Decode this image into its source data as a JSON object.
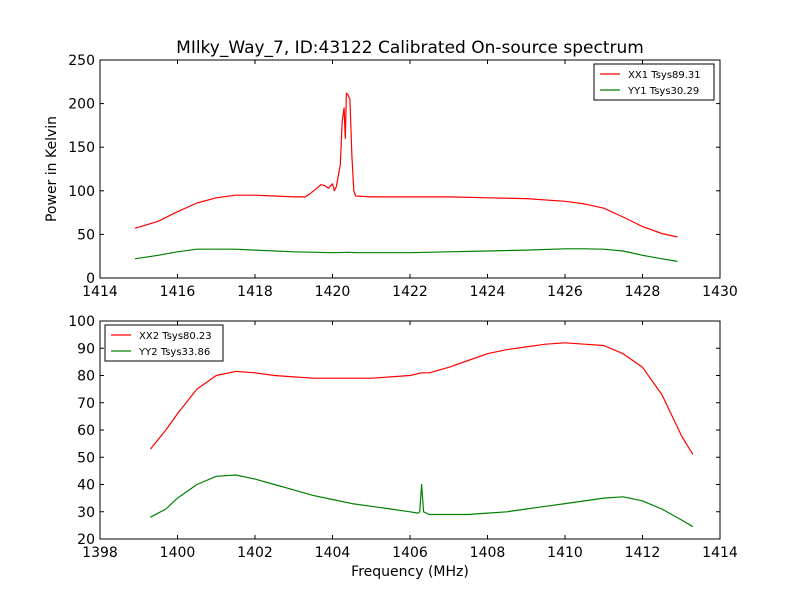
{
  "chart_data": [
    {
      "type": "line",
      "title": "MIlky_Way_7, ID:43122 Calibrated On-source spectrum",
      "xlabel": "",
      "ylabel": "Power in Kelvin",
      "xlim": [
        1414,
        1430
      ],
      "ylim": [
        0,
        250
      ],
      "xticks": [
        1414,
        1416,
        1418,
        1420,
        1422,
        1424,
        1426,
        1428,
        1430
      ],
      "yticks": [
        0,
        50,
        100,
        150,
        200,
        250
      ],
      "legend": "top-right",
      "series": [
        {
          "name": "XX1 Tsys89.31",
          "color": "#ff0000",
          "points": [
            [
              1414.9,
              57
            ],
            [
              1415.5,
              65
            ],
            [
              1416.0,
              76
            ],
            [
              1416.5,
              86
            ],
            [
              1417.0,
              92
            ],
            [
              1417.5,
              95
            ],
            [
              1418.0,
              95
            ],
            [
              1418.5,
              94
            ],
            [
              1419.0,
              93
            ],
            [
              1419.3,
              93
            ],
            [
              1419.4,
              96
            ],
            [
              1419.6,
              103
            ],
            [
              1419.7,
              107
            ],
            [
              1419.8,
              106
            ],
            [
              1419.9,
              103
            ],
            [
              1420.0,
              108
            ],
            [
              1420.05,
              100
            ],
            [
              1420.1,
              105
            ],
            [
              1420.2,
              130
            ],
            [
              1420.25,
              180
            ],
            [
              1420.3,
              195
            ],
            [
              1420.33,
              160
            ],
            [
              1420.36,
              212
            ],
            [
              1420.4,
              210
            ],
            [
              1420.45,
              205
            ],
            [
              1420.5,
              140
            ],
            [
              1420.55,
              100
            ],
            [
              1420.6,
              94
            ],
            [
              1421.0,
              93
            ],
            [
              1422.0,
              93
            ],
            [
              1423.0,
              93
            ],
            [
              1424.0,
              92
            ],
            [
              1425.0,
              91
            ],
            [
              1426.0,
              88
            ],
            [
              1426.5,
              85
            ],
            [
              1427.0,
              80
            ],
            [
              1427.5,
              70
            ],
            [
              1428.0,
              59
            ],
            [
              1428.5,
              51
            ],
            [
              1428.9,
              47
            ]
          ]
        },
        {
          "name": "YY1 Tsys30.29",
          "color": "#008000",
          "points": [
            [
              1414.9,
              22
            ],
            [
              1415.5,
              26
            ],
            [
              1416.0,
              30
            ],
            [
              1416.5,
              33
            ],
            [
              1417.0,
              33
            ],
            [
              1417.5,
              33
            ],
            [
              1418.0,
              32
            ],
            [
              1419.0,
              30
            ],
            [
              1420.0,
              29
            ],
            [
              1420.4,
              29.5
            ],
            [
              1420.6,
              29
            ],
            [
              1421.0,
              29
            ],
            [
              1422.0,
              29
            ],
            [
              1423.0,
              30
            ],
            [
              1424.0,
              31
            ],
            [
              1425.0,
              32
            ],
            [
              1426.0,
              33.5
            ],
            [
              1426.5,
              33.5
            ],
            [
              1427.0,
              33
            ],
            [
              1427.5,
              31
            ],
            [
              1428.0,
              26
            ],
            [
              1428.5,
              22
            ],
            [
              1428.9,
              19
            ]
          ]
        }
      ]
    },
    {
      "type": "line",
      "title": "",
      "xlabel": "Frequency (MHz)",
      "ylabel": "",
      "xlim": [
        1398,
        1414
      ],
      "ylim": [
        20,
        100
      ],
      "xticks": [
        1398,
        1400,
        1402,
        1404,
        1406,
        1408,
        1410,
        1412,
        1414
      ],
      "yticks": [
        20,
        30,
        40,
        50,
        60,
        70,
        80,
        90,
        100
      ],
      "legend": "top-left",
      "series": [
        {
          "name": "XX2 Tsys80.23",
          "color": "#ff0000",
          "points": [
            [
              1399.3,
              53
            ],
            [
              1399.7,
              60
            ],
            [
              1400.0,
              66
            ],
            [
              1400.5,
              75
            ],
            [
              1401.0,
              80
            ],
            [
              1401.5,
              81.5
            ],
            [
              1402.0,
              81
            ],
            [
              1402.5,
              80
            ],
            [
              1403.0,
              79.5
            ],
            [
              1403.5,
              79
            ],
            [
              1404.0,
              79
            ],
            [
              1404.5,
              79
            ],
            [
              1405.0,
              79
            ],
            [
              1405.5,
              79.5
            ],
            [
              1406.0,
              80
            ],
            [
              1406.3,
              81
            ],
            [
              1406.5,
              81
            ],
            [
              1407.0,
              83
            ],
            [
              1407.5,
              85.5
            ],
            [
              1408.0,
              88
            ],
            [
              1408.5,
              89.5
            ],
            [
              1409.0,
              90.5
            ],
            [
              1409.5,
              91.5
            ],
            [
              1410.0,
              92
            ],
            [
              1410.5,
              91.5
            ],
            [
              1411.0,
              91
            ],
            [
              1411.5,
              88
            ],
            [
              1412.0,
              83
            ],
            [
              1412.5,
              73
            ],
            [
              1413.0,
              58
            ],
            [
              1413.3,
              51
            ]
          ]
        },
        {
          "name": "YY2 Tsys33.86",
          "color": "#008000",
          "points": [
            [
              1399.3,
              28
            ],
            [
              1399.7,
              31
            ],
            [
              1400.0,
              35
            ],
            [
              1400.5,
              40
            ],
            [
              1401.0,
              43
            ],
            [
              1401.5,
              43.5
            ],
            [
              1402.0,
              42
            ],
            [
              1402.5,
              40
            ],
            [
              1403.0,
              38
            ],
            [
              1403.5,
              36
            ],
            [
              1404.0,
              34.5
            ],
            [
              1404.5,
              33
            ],
            [
              1405.0,
              32
            ],
            [
              1405.5,
              31
            ],
            [
              1406.0,
              30
            ],
            [
              1406.2,
              29.5
            ],
            [
              1406.25,
              30
            ],
            [
              1406.3,
              40
            ],
            [
              1406.35,
              30
            ],
            [
              1406.5,
              29
            ],
            [
              1407.0,
              29
            ],
            [
              1407.5,
              29
            ],
            [
              1408.0,
              29.5
            ],
            [
              1408.5,
              30
            ],
            [
              1409.0,
              31
            ],
            [
              1409.5,
              32
            ],
            [
              1410.0,
              33
            ],
            [
              1410.5,
              34
            ],
            [
              1411.0,
              35
            ],
            [
              1411.5,
              35.5
            ],
            [
              1412.0,
              34
            ],
            [
              1412.5,
              31
            ],
            [
              1413.0,
              27
            ],
            [
              1413.3,
              24.5
            ]
          ]
        }
      ]
    }
  ]
}
